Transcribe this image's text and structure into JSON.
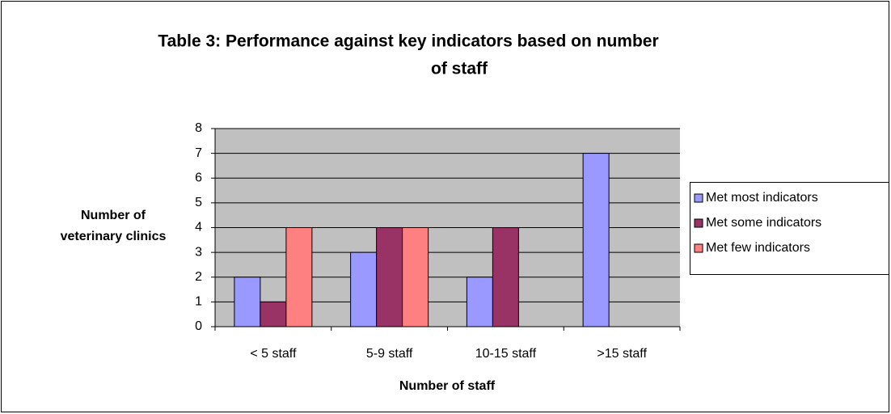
{
  "chart_data": {
    "type": "bar",
    "title": [
      "Table 3: Performance against key indicators based on number",
      "of staff"
    ],
    "y_label": [
      "Number of",
      "veterinary clinics"
    ],
    "x_label": "Number of staff",
    "categories": [
      "< 5 staff",
      "5-9 staff",
      "10-15 staff",
      ">15 staff"
    ],
    "series": [
      {
        "name": "Met most indicators",
        "color": "#9999ff",
        "values": [
          2,
          3,
          2,
          7
        ]
      },
      {
        "name": "Met some indicators",
        "color": "#993366",
        "values": [
          1,
          4,
          4,
          0
        ]
      },
      {
        "name": "Met few indicators",
        "color": "#ff8080",
        "values": [
          4,
          4,
          0,
          0
        ]
      }
    ],
    "ylim": [
      0,
      8
    ],
    "yticks": [
      0,
      1,
      2,
      3,
      4,
      5,
      6,
      7,
      8
    ],
    "grid": true,
    "legend": "right"
  }
}
